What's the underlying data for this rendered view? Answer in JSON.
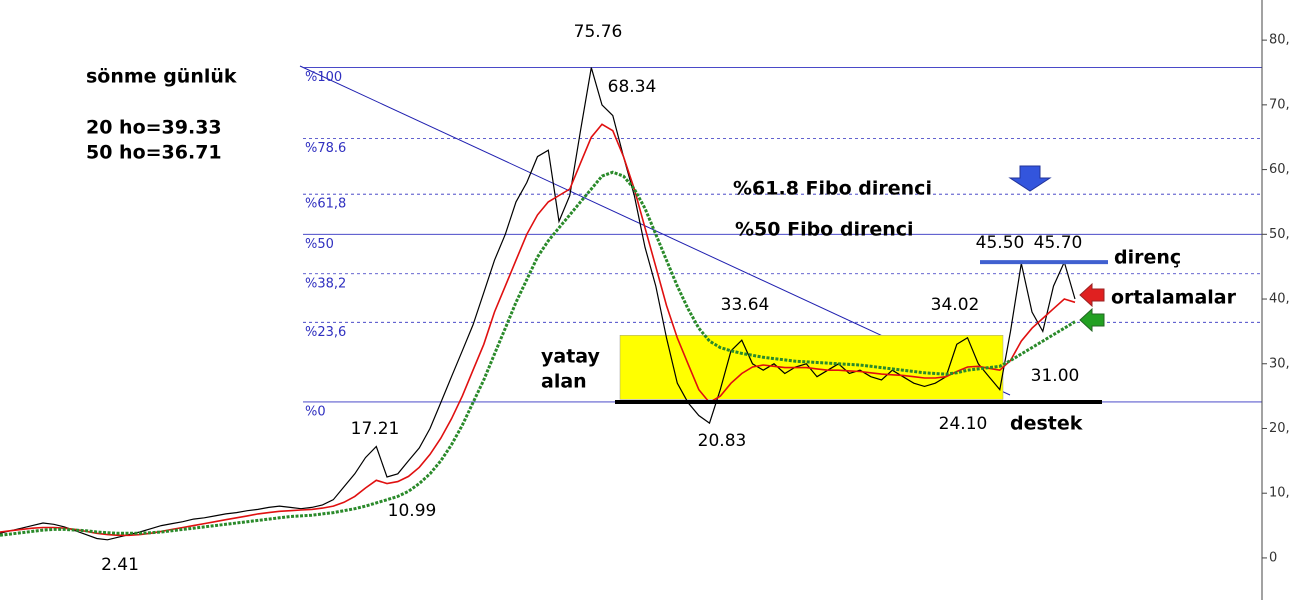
{
  "chart_data": {
    "type": "line",
    "ylim": [
      -6.5,
      86.2
    ],
    "yticks": [
      {
        "value": 0,
        "label": "0"
      },
      {
        "value": 10,
        "label": "10,"
      },
      {
        "value": 20,
        "label": "20,"
      },
      {
        "value": 30,
        "label": "30,"
      },
      {
        "value": 40,
        "label": "40,"
      },
      {
        "value": 50,
        "label": "50,"
      },
      {
        "value": 60,
        "label": "60,"
      },
      {
        "value": 70,
        "label": "70,"
      },
      {
        "value": 80,
        "label": "80,"
      }
    ],
    "series": [
      {
        "color": "#000000",
        "values": [
          3.8,
          4.2,
          4.6,
          5.0,
          5.4,
          5.2,
          4.8,
          4.2,
          3.6,
          3.0,
          2.8,
          3.2,
          3.6,
          4.0,
          4.5,
          5.0,
          5.3,
          5.6,
          6.0,
          6.2,
          6.5,
          6.8,
          7.0,
          7.3,
          7.5,
          7.8,
          8.0,
          7.8,
          7.6,
          7.8,
          8.2,
          9,
          11,
          13,
          15.5,
          17.21,
          12.5,
          13,
          15,
          17,
          20,
          24,
          28,
          32,
          36,
          41,
          46,
          50,
          55,
          58,
          62,
          63,
          52,
          56,
          66,
          75.76,
          70,
          68.34,
          62,
          56,
          48,
          42,
          34,
          27,
          24,
          22,
          20.83,
          26,
          32,
          33.64,
          30,
          29,
          30,
          28.5,
          29.5,
          30,
          28,
          29,
          30,
          28.5,
          29,
          28,
          27.5,
          29,
          28,
          27,
          26.5,
          27,
          28,
          33,
          34.02,
          30,
          28,
          26,
          35,
          45.5,
          38,
          35,
          42,
          45.7,
          40
        ]
      },
      {
        "color": "#e01010",
        "values": [
          4,
          4.2,
          4.4,
          4.6,
          4.7,
          4.7,
          4.6,
          4.4,
          4.1,
          3.8,
          3.6,
          3.5,
          3.5,
          3.6,
          3.8,
          4.1,
          4.4,
          4.7,
          5.0,
          5.3,
          5.6,
          5.9,
          6.2,
          6.5,
          6.8,
          7.0,
          7.2,
          7.3,
          7.4,
          7.5,
          7.7,
          8.0,
          8.6,
          9.5,
          10.8,
          12,
          11.5,
          11.8,
          12.6,
          14,
          16,
          18.5,
          21.5,
          25,
          29,
          33,
          38,
          42,
          46,
          50,
          53,
          55,
          56,
          57,
          61,
          65,
          67,
          66,
          62,
          57,
          51,
          45,
          39,
          34,
          30,
          26,
          24,
          25,
          27,
          28.5,
          29.5,
          29.8,
          29.6,
          29.4,
          29.4,
          29.4,
          29.2,
          29.0,
          29.0,
          28.9,
          28.8,
          28.6,
          28.4,
          28.3,
          28.2,
          28.0,
          27.8,
          27.8,
          28.0,
          28.8,
          29.5,
          29.6,
          29.3,
          29.0,
          30.5,
          33.5,
          35.5,
          37,
          38.5,
          40,
          39.5
        ]
      },
      {
        "color": "#2a8a2a",
        "values": [
          3.5,
          3.7,
          3.9,
          4.1,
          4.3,
          4.4,
          4.4,
          4.3,
          4.2,
          4.0,
          3.9,
          3.8,
          3.8,
          3.8,
          3.9,
          4.0,
          4.2,
          4.4,
          4.6,
          4.8,
          5.0,
          5.2,
          5.4,
          5.6,
          5.8,
          6.0,
          6.2,
          6.4,
          6.5,
          6.6,
          6.8,
          7.0,
          7.3,
          7.6,
          8.0,
          8.5,
          9.0,
          9.5,
          10.3,
          11.5,
          13,
          15,
          17.5,
          20.5,
          24,
          27.5,
          31.5,
          35.5,
          39.5,
          43,
          46.5,
          49,
          51,
          53,
          55,
          57,
          59,
          59.6,
          59,
          57,
          54,
          50,
          46,
          42,
          38.5,
          35.5,
          33.5,
          32.5,
          32,
          31.6,
          31.3,
          31.0,
          30.8,
          30.6,
          30.4,
          30.3,
          30.2,
          30.1,
          30.0,
          29.9,
          29.8,
          29.6,
          29.4,
          29.2,
          29.0,
          28.8,
          28.6,
          28.5,
          28.4,
          28.6,
          29.0,
          29.2,
          29.4,
          29.6,
          30.5,
          31.5,
          32.5,
          33.5,
          34.5,
          35.5,
          36.5
        ]
      }
    ],
    "fib_levels": [
      {
        "value": 75.76,
        "label": "%100",
        "dashed": false
      },
      {
        "value": 64.8,
        "label": "%78.6",
        "dashed": true
      },
      {
        "value": 56.2,
        "label": "%61,8",
        "dashed": true
      },
      {
        "value": 50.0,
        "label": "%50",
        "dashed": false
      },
      {
        "value": 43.9,
        "label": "%38,2",
        "dashed": true
      },
      {
        "value": 36.4,
        "label": "%23,6",
        "dashed": true
      },
      {
        "value": 24.1,
        "label": "%0",
        "dashed": false
      }
    ],
    "fib_color": "#3030c0",
    "range_box": {
      "ylim": [
        24.5,
        34.4
      ],
      "color": "#ffff00"
    },
    "resistance": {
      "value": 45.7,
      "color": "#4060d0"
    },
    "support": {
      "value": 24.1,
      "color": "#000000"
    },
    "price_labels": [
      "75.76",
      "68.34",
      "33.64",
      "20.83",
      "17.21",
      "10.99",
      "2.41",
      "34.02",
      "45.50",
      "45.70",
      "31.00",
      "24.10"
    ],
    "notes": {
      "title": "sönme günlük",
      "ma20": "20 ho=39.33",
      "ma50": "50 ho=36.71",
      "fib618": "%61.8 Fibo direnci",
      "fib50": "%50 Fibo direnci",
      "resistance": "direnç",
      "averages": "ortalamalar",
      "range1": "yatay",
      "range2": "alan",
      "support": "destek"
    }
  }
}
